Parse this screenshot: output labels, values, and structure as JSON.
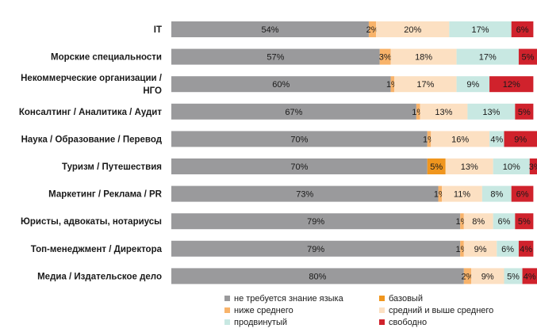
{
  "chart_data": {
    "type": "bar",
    "orientation": "horizontal",
    "stacked": true,
    "percent_stacked": true,
    "title": "",
    "xlabel": "",
    "ylabel": "",
    "xlim": [
      0,
      100
    ],
    "grid": false,
    "legend_position": "bottom",
    "categories": [
      "IT",
      "Морские  специальности",
      "Некоммерческие  организации  / НГО",
      "Консалтинг  / Аналитика  / Аудит",
      "Наука  / Образование  / Перевод",
      "Туризм  / Путешествия",
      "Маркетинг  / Реклама  / PR",
      "Юристы, адвокаты,  нотариусы",
      "Топ-менеджмент  / Директора",
      "Медиа / Издательское дело"
    ],
    "category_lines": [
      [
        "IT"
      ],
      [
        "Морские  специальности"
      ],
      [
        "Некоммерческие  организации  /",
        "НГО"
      ],
      [
        "Консалтинг  / Аналитика  / Аудит"
      ],
      [
        "Наука  / Образование  / Перевод"
      ],
      [
        "Туризм  / Путешествия"
      ],
      [
        "Маркетинг  / Реклама  / PR"
      ],
      [
        "Юристы, адвокаты,  нотариусы"
      ],
      [
        "Топ-менеджмент  / Директора"
      ],
      [
        "Медиа / Издательское дело"
      ]
    ],
    "series": [
      {
        "name": "не требуется знание языка",
        "color": "#9a9a9c",
        "values": [
          54,
          57,
          60,
          67,
          70,
          70,
          73,
          79,
          79,
          80
        ]
      },
      {
        "name": "базовый",
        "color": "#f0961e",
        "values": [
          0,
          0,
          0,
          0,
          0,
          5,
          0,
          0,
          0,
          0
        ]
      },
      {
        "name": "ниже среднего",
        "color": "#f8b36a",
        "values": [
          2,
          3,
          1,
          1,
          1,
          0,
          1,
          1,
          1,
          2
        ]
      },
      {
        "name": "средний и выше среднего",
        "color": "#fce0c2",
        "values": [
          20,
          18,
          17,
          13,
          16,
          13,
          11,
          8,
          9,
          9
        ]
      },
      {
        "name": "продвинутый",
        "color": "#c8e8e2",
        "values": [
          17,
          17,
          9,
          13,
          4,
          10,
          8,
          6,
          6,
          5
        ]
      },
      {
        "name": "свободно",
        "color": "#d0222c",
        "values": [
          6,
          5,
          12,
          5,
          9,
          3,
          6,
          5,
          4,
          4
        ]
      }
    ],
    "value_suffix": "%"
  }
}
